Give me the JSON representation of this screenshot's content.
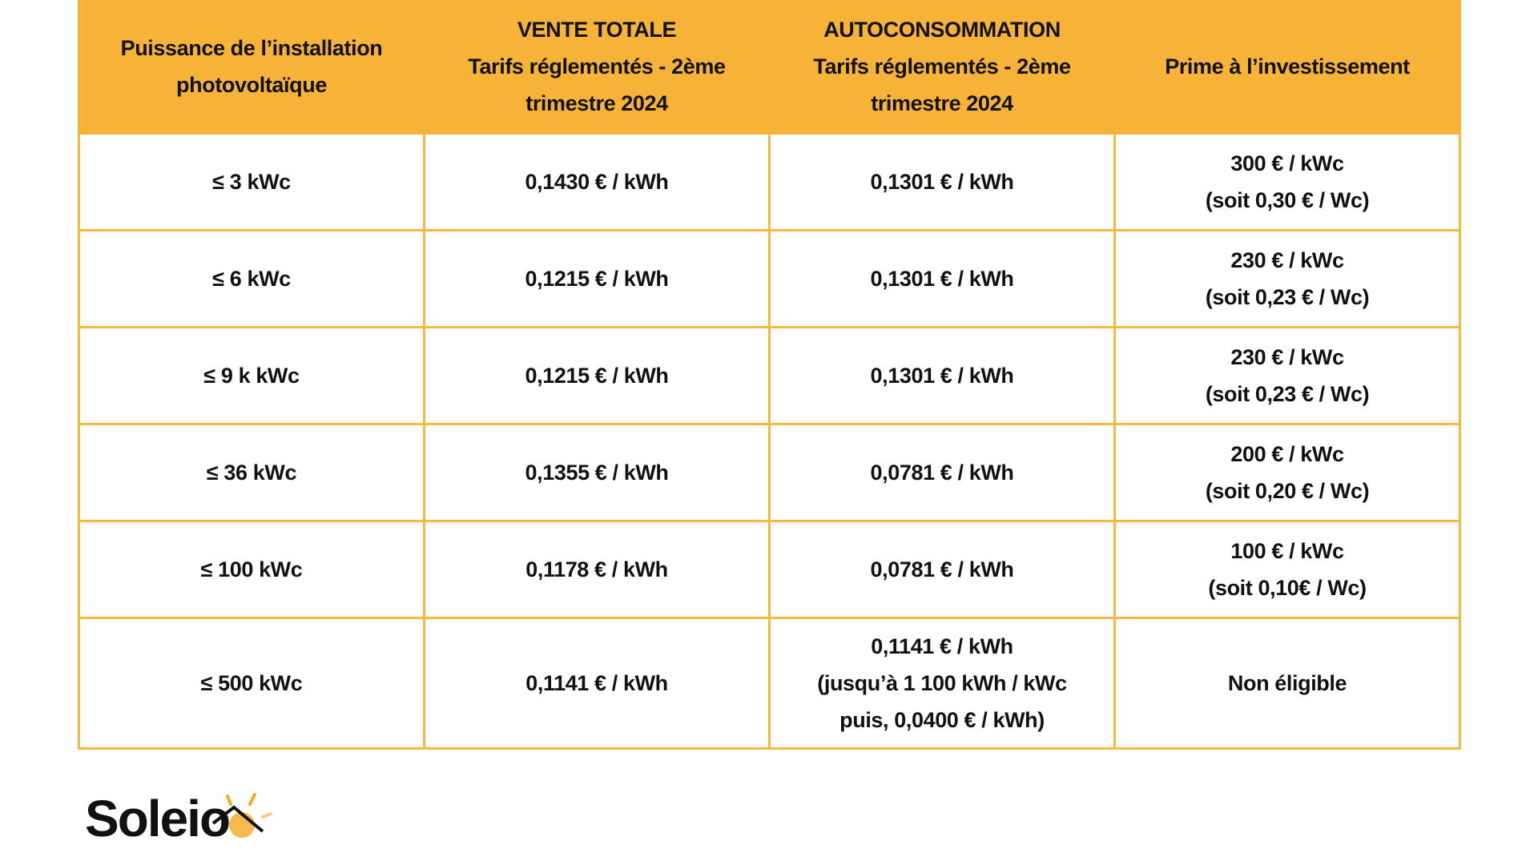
{
  "headers": [
    [
      "Puissance de l’installation",
      "photovoltaïque"
    ],
    [
      "VENTE TOTALE",
      "Tarifs réglementés - 2ème",
      "trimestre 2024"
    ],
    [
      "AUTOCONSOMMATION",
      "Tarifs réglementés - 2ème",
      "trimestre 2024"
    ],
    [
      "Prime à l’investissement"
    ]
  ],
  "rows": [
    {
      "power": "≤ 3 kWc",
      "vente": "0,1430 € / kWh",
      "auto": [
        "0,1301 € / kWh"
      ],
      "prime": [
        "300 € / kWc",
        "(soit 0,30 € / Wc)"
      ]
    },
    {
      "power": "≤  6 kWc",
      "vente": "0,1215 € / kWh",
      "auto": [
        "0,1301 € / kWh"
      ],
      "prime": [
        "230 € / kWc",
        "(soit 0,23 € / Wc)"
      ]
    },
    {
      "power": "≤ 9 k kWc",
      "vente": "0,1215 € / kWh",
      "auto": [
        "0,1301 € / kWh"
      ],
      "prime": [
        "230 € / kWc",
        "(soit 0,23 € / Wc)"
      ]
    },
    {
      "power": "≤ 36 kWc",
      "vente": "0,1355 € / kWh",
      "auto": [
        "0,0781 € / kWh"
      ],
      "prime": [
        "200 € / kWc",
        "(soit 0,20 € / Wc)"
      ]
    },
    {
      "power": "≤ 100 kWc",
      "vente": "0,1178 € / kWh",
      "auto": [
        "0,0781 € / kWh"
      ],
      "prime": [
        "100 € / kWc",
        "(soit 0,10€ / Wc)"
      ]
    },
    {
      "power": "≤ 500 kWc",
      "vente": "0,1141 € / kWh",
      "auto": [
        "0,1141 € / kWh",
        "(jusqu’à 1 100 kWh / kWc",
        "puis, 0,0400 € / kWh)"
      ],
      "prime": [
        "Non éligible"
      ]
    }
  ],
  "logo": {
    "text": "Soleio"
  },
  "colors": {
    "header_bg": "#F7B337",
    "border": "#F5B841",
    "sun": "#F7A823"
  }
}
